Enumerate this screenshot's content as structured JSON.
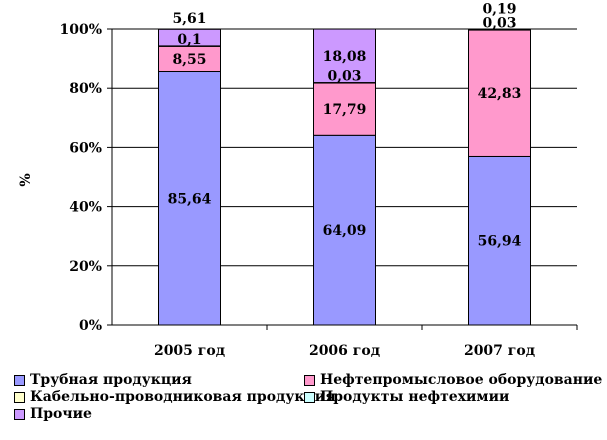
{
  "chart_data": {
    "type": "bar",
    "stacked": "percent",
    "title": "",
    "xlabel": "",
    "ylabel": "%",
    "ylim": [
      0,
      100
    ],
    "yticks": [
      "0%",
      "20%",
      "40%",
      "60%",
      "80%",
      "100%"
    ],
    "grid": true,
    "legend_position": "bottom",
    "categories": [
      "2005 год",
      "2006 год",
      "2007 год"
    ],
    "series": [
      {
        "name": "Трубная продукция",
        "color": "#9999ff",
        "values": [
          85.64,
          64.09,
          56.94
        ],
        "labels": [
          "85,64",
          "64,09",
          "56,94"
        ]
      },
      {
        "name": "Нефтепромысловое оборудование",
        "color": "#ff99cc",
        "values": [
          8.55,
          17.79,
          42.83
        ],
        "labels": [
          "8,55",
          "17,79",
          "42,83"
        ]
      },
      {
        "name": "Кабельно-проводниковая продукция",
        "color": "#ffffcc",
        "values": [
          0.1,
          0.0,
          0.0
        ],
        "labels": [
          "0,1",
          "",
          ""
        ]
      },
      {
        "name": "Продукты нефтехимии",
        "color": "#ccffff",
        "values": [
          0.0,
          0.03,
          0.03
        ],
        "labels": [
          "",
          "0,03",
          "0,03"
        ]
      },
      {
        "name": "Прочие",
        "color": "#cc99ff",
        "values": [
          5.61,
          18.08,
          0.19
        ],
        "labels": [
          "5,61",
          "18,08",
          "0,19"
        ]
      }
    ]
  }
}
